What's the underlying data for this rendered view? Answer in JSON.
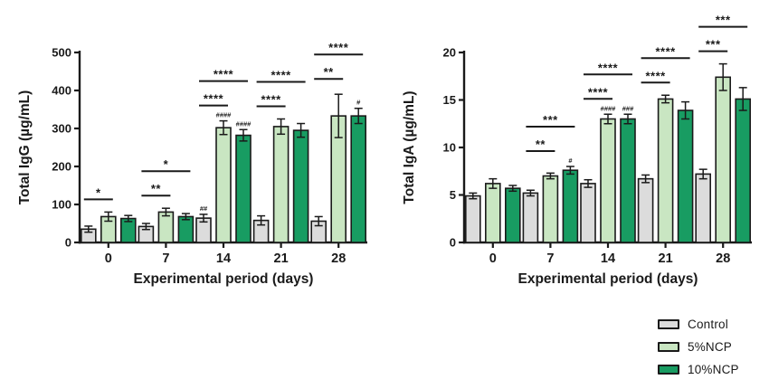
{
  "figure": {
    "background": "#ffffff",
    "axis_color": "#1a1a1a"
  },
  "legend": {
    "items": [
      {
        "label": "Control",
        "color": "#dcdcdc"
      },
      {
        "label": "5%NCP",
        "color": "#c9e6c2"
      },
      {
        "label": "10%NCP",
        "color": "#189c62"
      }
    ]
  },
  "chart_data": [
    {
      "type": "bar",
      "title": "",
      "ylabel": "Total IgG (µg/mL)",
      "xlabel": "Experimental period (days)",
      "ylim": [
        0,
        500
      ],
      "yticks": [
        0,
        100,
        200,
        300,
        400,
        500
      ],
      "categories": [
        "0",
        "7",
        "14",
        "21",
        "28"
      ],
      "grid": false,
      "legend_position": "none",
      "series": [
        {
          "name": "Control",
          "color": "#dcdcdc",
          "values": [
            35,
            42,
            64,
            58,
            56
          ],
          "errors": [
            8,
            8,
            10,
            12,
            12
          ],
          "hash_labels": [
            "",
            "",
            "##",
            "",
            ""
          ]
        },
        {
          "name": "5%NCP",
          "color": "#c9e6c2",
          "values": [
            68,
            80,
            302,
            305,
            333
          ],
          "errors": [
            12,
            10,
            18,
            20,
            57
          ],
          "hash_labels": [
            "",
            "",
            "####",
            "",
            ""
          ]
        },
        {
          "name": "10%NCP",
          "color": "#189c62",
          "values": [
            63,
            68,
            282,
            295,
            333
          ],
          "errors": [
            8,
            8,
            15,
            18,
            20
          ],
          "hash_labels": [
            "",
            "",
            "####",
            "",
            "#"
          ]
        }
      ],
      "significance": [
        {
          "group": 0,
          "brackets": [
            {
              "bars": [
                0,
                1
              ],
              "label": "*"
            }
          ]
        },
        {
          "group": 1,
          "brackets": [
            {
              "bars": [
                0,
                1
              ],
              "label": "**"
            },
            {
              "bars": [
                0,
                2
              ],
              "label": "*"
            }
          ]
        },
        {
          "group": 2,
          "brackets": [
            {
              "bars": [
                0,
                1
              ],
              "label": "****"
            },
            {
              "bars": [
                0,
                2
              ],
              "label": "****"
            }
          ]
        },
        {
          "group": 3,
          "brackets": [
            {
              "bars": [
                0,
                1
              ],
              "label": "****"
            },
            {
              "bars": [
                0,
                2
              ],
              "label": "****"
            }
          ]
        },
        {
          "group": 4,
          "brackets": [
            {
              "bars": [
                0,
                1
              ],
              "label": "**"
            },
            {
              "bars": [
                0,
                2
              ],
              "label": "****"
            }
          ]
        }
      ]
    },
    {
      "type": "bar",
      "title": "",
      "ylabel": "Total IgA (µg/mL)",
      "xlabel": "Experimental period (days)",
      "ylim": [
        0,
        20
      ],
      "yticks": [
        0,
        5,
        10,
        15,
        20
      ],
      "categories": [
        "0",
        "7",
        "14",
        "21",
        "28"
      ],
      "grid": false,
      "legend_position": "none",
      "series": [
        {
          "name": "Control",
          "color": "#dcdcdc",
          "values": [
            4.9,
            5.2,
            6.2,
            6.7,
            7.2
          ],
          "errors": [
            0.3,
            0.3,
            0.4,
            0.4,
            0.5
          ],
          "hash_labels": [
            "",
            "",
            "",
            "",
            ""
          ]
        },
        {
          "name": "5%NCP",
          "color": "#c9e6c2",
          "values": [
            6.2,
            7.0,
            13.0,
            15.1,
            17.4
          ],
          "errors": [
            0.5,
            0.3,
            0.5,
            0.4,
            1.4
          ],
          "hash_labels": [
            "",
            "",
            "####",
            "",
            ""
          ]
        },
        {
          "name": "10%NCP",
          "color": "#189c62",
          "values": [
            5.7,
            7.6,
            13.0,
            13.9,
            15.1
          ],
          "errors": [
            0.3,
            0.4,
            0.5,
            0.9,
            1.2
          ],
          "hash_labels": [
            "",
            "#",
            "###",
            "",
            ""
          ]
        }
      ],
      "significance": [
        {
          "group": 0,
          "brackets": []
        },
        {
          "group": 1,
          "brackets": [
            {
              "bars": [
                0,
                1
              ],
              "label": "**"
            },
            {
              "bars": [
                0,
                2
              ],
              "label": "***"
            }
          ]
        },
        {
          "group": 2,
          "brackets": [
            {
              "bars": [
                0,
                1
              ],
              "label": "****"
            },
            {
              "bars": [
                0,
                2
              ],
              "label": "****"
            }
          ]
        },
        {
          "group": 3,
          "brackets": [
            {
              "bars": [
                0,
                1
              ],
              "label": "****"
            },
            {
              "bars": [
                0,
                2
              ],
              "label": "****"
            }
          ]
        },
        {
          "group": 4,
          "brackets": [
            {
              "bars": [
                0,
                1
              ],
              "label": "***"
            },
            {
              "bars": [
                0,
                2
              ],
              "label": "***"
            }
          ]
        }
      ]
    }
  ]
}
